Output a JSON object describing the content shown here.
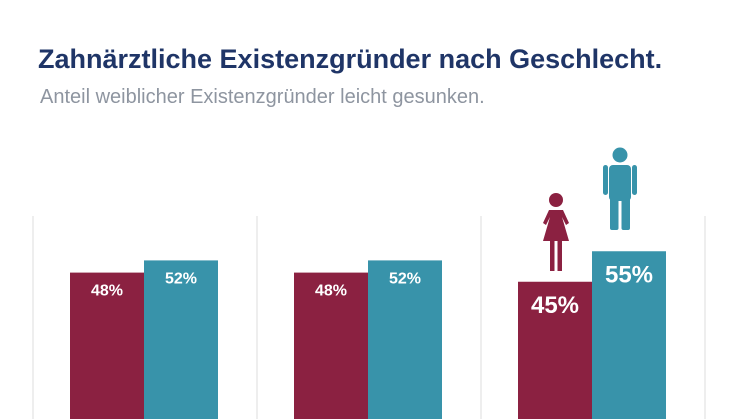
{
  "header": {
    "title": "Zahnärztliche Existenzgründer nach Geschlecht.",
    "subtitle": "Anteil weiblicher Existenzgründer leicht gesunken."
  },
  "colors": {
    "female": "#8b2141",
    "male": "#3893aa",
    "divider": "#dcdcdc"
  },
  "icons": {
    "female": "female-person-icon",
    "male": "male-person-icon"
  },
  "chart_data": {
    "type": "bar",
    "categories": [
      "",
      "",
      ""
    ],
    "ylim": [
      0,
      100
    ],
    "grid": false,
    "legend": "none",
    "series": [
      {
        "values": [
          48,
          48,
          45
        ],
        "labels": [
          "48%",
          "48%",
          "45%"
        ],
        "color": "#8b2141"
      },
      {
        "values": [
          52,
          52,
          55
        ],
        "labels": [
          "52%",
          "52%",
          "55%"
        ],
        "color": "#3893aa"
      }
    ],
    "highlighted_group": 2
  }
}
